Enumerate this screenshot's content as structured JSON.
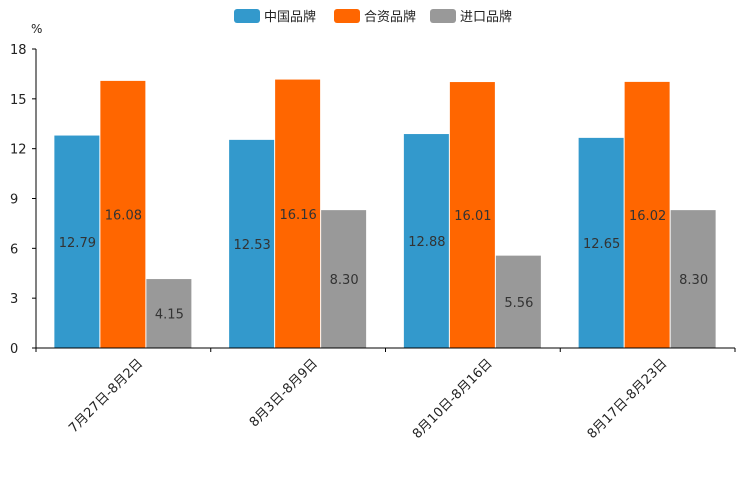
{
  "chart_data": {
    "type": "bar",
    "ylabel": "%",
    "ylim": [
      0,
      18
    ],
    "yticks": [
      0,
      3,
      6,
      9,
      12,
      15,
      18
    ],
    "categories": [
      "7月27日-8月2日",
      "8月3日-8月9日",
      "8月10日-8月16日",
      "8月17日-8月23日"
    ],
    "series": [
      {
        "name": "中国品牌",
        "color": "#3399cc",
        "values": [
          12.79,
          12.53,
          12.88,
          12.65
        ],
        "labels": [
          "12.79",
          "12.53",
          "12.88",
          "12.65"
        ]
      },
      {
        "name": "合资品牌",
        "color": "#ff6600",
        "values": [
          16.08,
          16.16,
          16.01,
          16.02
        ],
        "labels": [
          "16.08",
          "16.16",
          "16.01",
          "16.02"
        ]
      },
      {
        "name": "进口品牌",
        "color": "#999999",
        "values": [
          4.15,
          8.3,
          5.56,
          8.3
        ],
        "labels": [
          "4.15",
          "8.30",
          "5.56",
          "8.30"
        ]
      }
    ],
    "legend_position": "top-center",
    "grid": false
  }
}
